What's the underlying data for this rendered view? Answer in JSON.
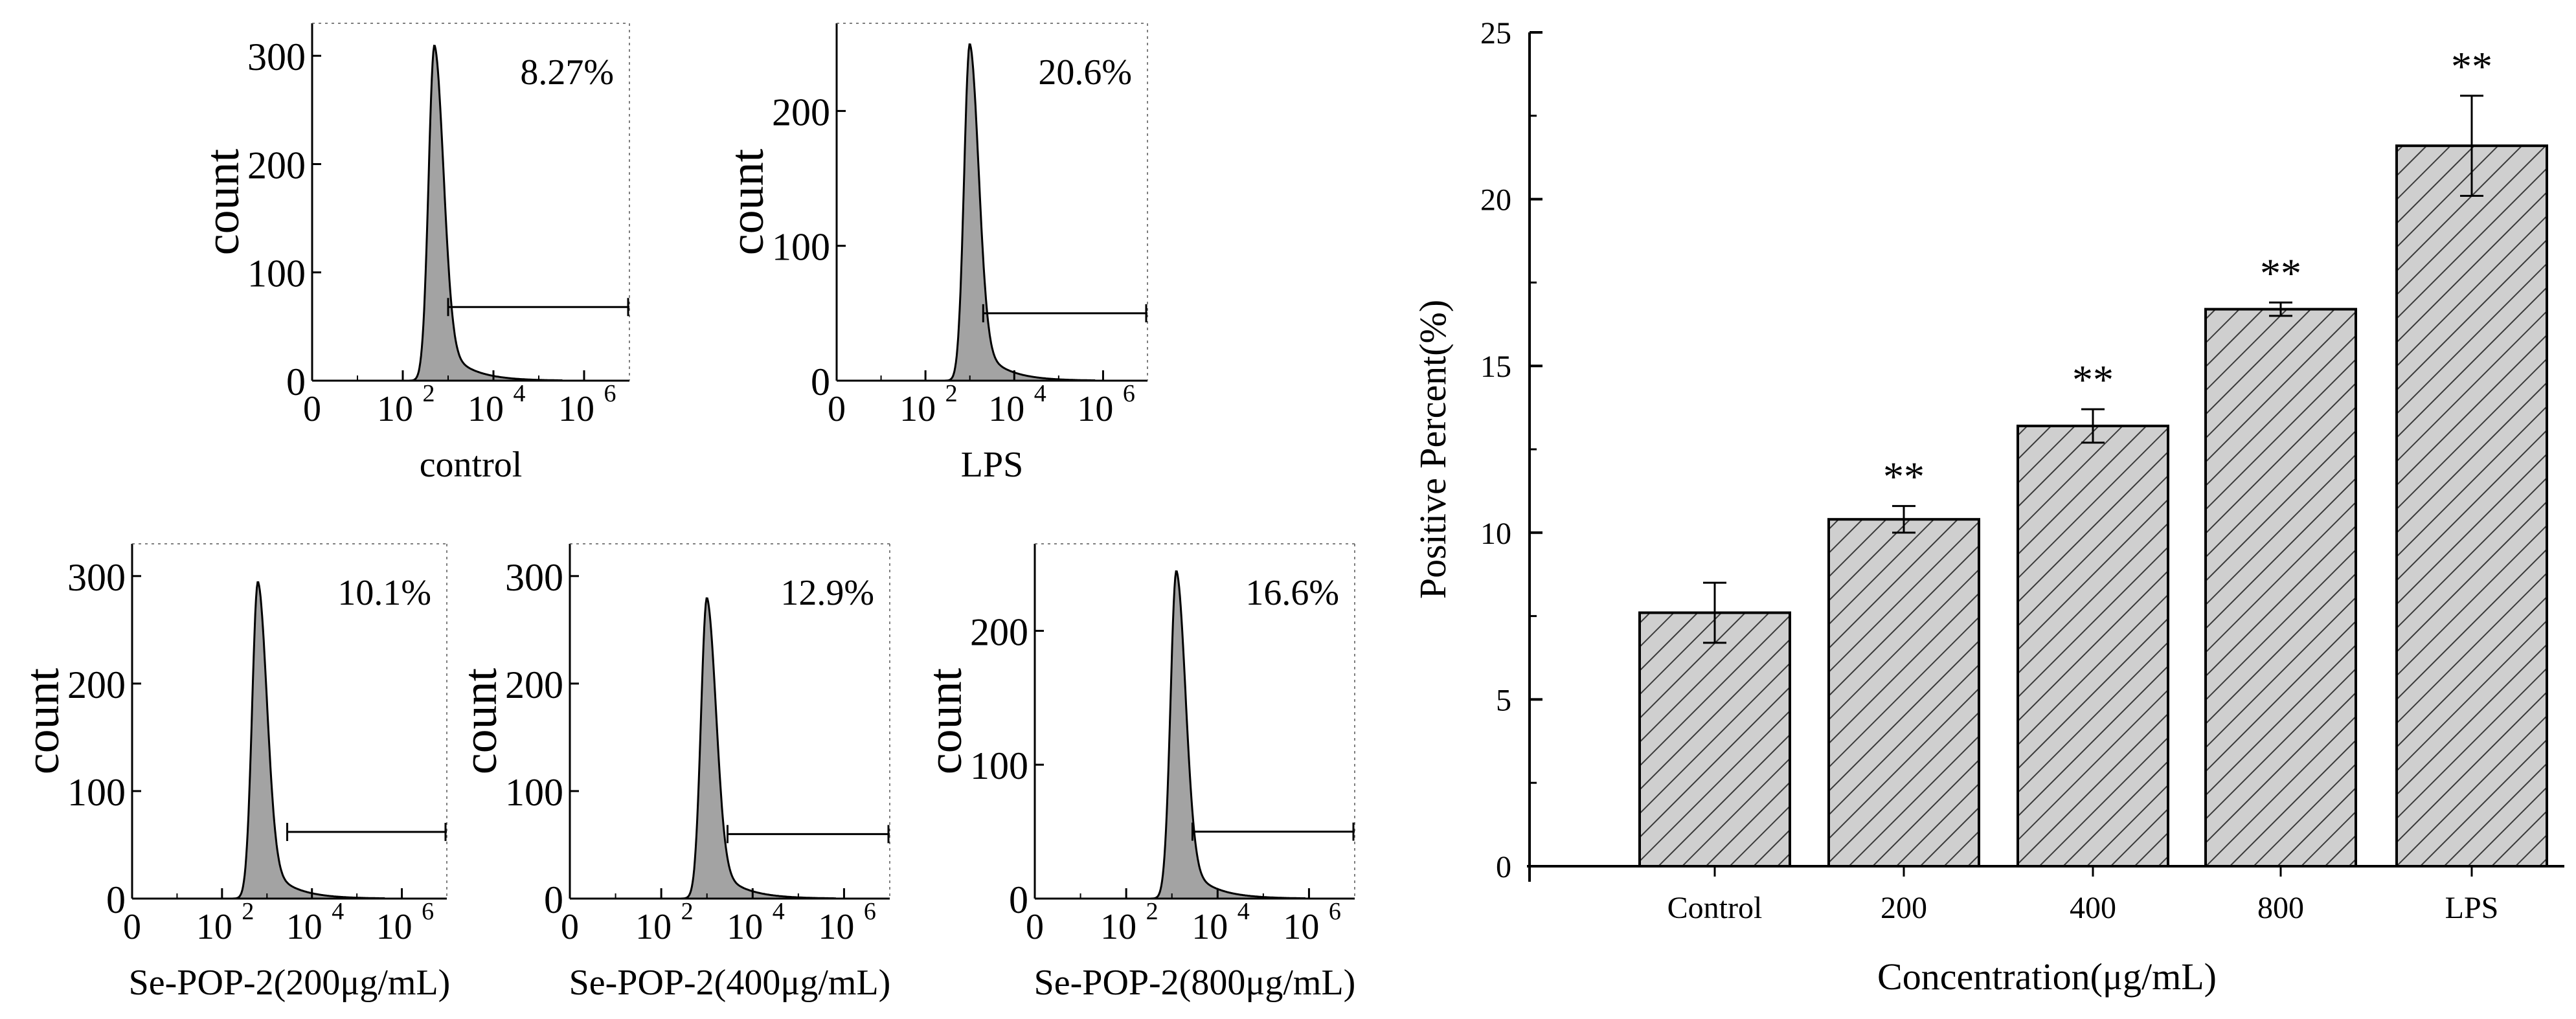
{
  "colors": {
    "axis": "#000000",
    "fill": "#a3a3a3",
    "bar_fill": "#cfcfcf",
    "hatch": "#3a3a3a"
  },
  "chart_data": [
    {
      "type": "area",
      "panel": "histogram-control",
      "ylabel": "count",
      "xlabel": "control",
      "x_tick_labels": [
        "0",
        "10",
        "10",
        "10"
      ],
      "x_tick_exponents": [
        "",
        "2",
        "4",
        "6"
      ],
      "y_ticks": [
        0,
        100,
        200,
        300
      ],
      "ylim": [
        0,
        330
      ],
      "xlim_log": [
        0,
        7
      ],
      "peak_log": 2.7,
      "peak_count": 310,
      "gate_start_log": 3.0,
      "gate_height": 68,
      "positive_label": "8.27%"
    },
    {
      "type": "area",
      "panel": "histogram-lps",
      "ylabel": "count",
      "xlabel": "LPS",
      "x_tick_labels": [
        "0",
        "10",
        "10",
        "10"
      ],
      "x_tick_exponents": [
        "",
        "2",
        "4",
        "6"
      ],
      "y_ticks": [
        0,
        100,
        200
      ],
      "ylim": [
        0,
        265
      ],
      "xlim_log": [
        0,
        7
      ],
      "peak_log": 3.0,
      "peak_count": 250,
      "gate_start_log": 3.3,
      "gate_height": 50,
      "positive_label": "20.6%"
    },
    {
      "type": "area",
      "panel": "histogram-200",
      "ylabel": "count",
      "xlabel": "Se-POP-2(200μg/mL)",
      "x_tick_labels": [
        "0",
        "10",
        "10",
        "10"
      ],
      "x_tick_exponents": [
        "",
        "2",
        "4",
        "6"
      ],
      "y_ticks": [
        0,
        100,
        200,
        300
      ],
      "ylim": [
        0,
        330
      ],
      "xlim_log": [
        0,
        7
      ],
      "peak_log": 2.8,
      "peak_count": 295,
      "gate_start_log": 3.45,
      "gate_height": 62,
      "positive_label": "10.1%"
    },
    {
      "type": "area",
      "panel": "histogram-400",
      "ylabel": "count",
      "xlabel": "Se-POP-2(400μg/mL)",
      "x_tick_labels": [
        "0",
        "10",
        "10",
        "10"
      ],
      "x_tick_exponents": [
        "",
        "2",
        "4",
        "6"
      ],
      "y_ticks": [
        0,
        100,
        200,
        300
      ],
      "ylim": [
        0,
        330
      ],
      "xlim_log": [
        0,
        7
      ],
      "peak_log": 3.0,
      "peak_count": 280,
      "gate_start_log": 3.45,
      "gate_height": 60,
      "positive_label": "12.9%"
    },
    {
      "type": "area",
      "panel": "histogram-800",
      "ylabel": "count",
      "xlabel": "Se-POP-2(800μg/mL)",
      "x_tick_labels": [
        "0",
        "10",
        "10",
        "10"
      ],
      "x_tick_exponents": [
        "",
        "2",
        "4",
        "6"
      ],
      "y_ticks": [
        0,
        100,
        200
      ],
      "ylim": [
        0,
        265
      ],
      "xlim_log": [
        0,
        7
      ],
      "peak_log": 3.1,
      "peak_count": 245,
      "gate_start_log": 3.45,
      "gate_height": 50,
      "positive_label": "16.6%"
    },
    {
      "type": "bar",
      "panel": "positive-percent-bar-chart",
      "categories": [
        "Control",
        "200",
        "400",
        "800",
        "LPS"
      ],
      "values": [
        7.6,
        10.4,
        13.2,
        16.7,
        21.6
      ],
      "errors": [
        0.9,
        0.4,
        0.5,
        0.2,
        1.5
      ],
      "annotations": [
        "",
        "**",
        "**",
        "**",
        "**"
      ],
      "xlabel": "Concentration(μg/mL)",
      "ylabel": "Positive Percent(%)",
      "ylim": [
        0,
        25
      ],
      "y_ticks": [
        0,
        5,
        10,
        15,
        20,
        25
      ]
    }
  ]
}
